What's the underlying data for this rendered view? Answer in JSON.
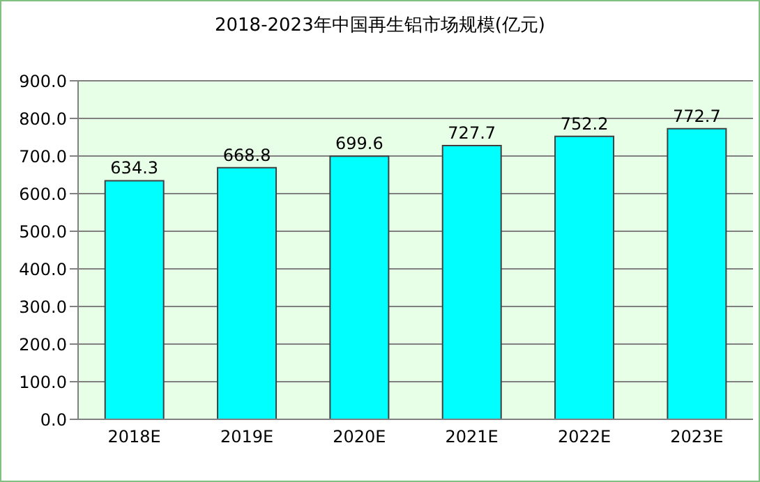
{
  "chart_data": {
    "type": "bar",
    "title": "2018-2023年中国再生铝市场规模(亿元)",
    "categories": [
      "2018E",
      "2019E",
      "2020E",
      "2021E",
      "2022E",
      "2023E"
    ],
    "values": [
      634.3,
      668.8,
      699.6,
      727.7,
      752.2,
      772.7
    ],
    "color": "#00ffff",
    "ylim": [
      0,
      900
    ],
    "yticks": [
      {
        "value": 0,
        "label": "0.0"
      },
      {
        "value": 100,
        "label": "100.0"
      },
      {
        "value": 200,
        "label": "200.0"
      },
      {
        "value": 300,
        "label": "300.0"
      },
      {
        "value": 400,
        "label": "400.0"
      },
      {
        "value": 500,
        "label": "500.0"
      },
      {
        "value": 600,
        "label": "600.0"
      },
      {
        "value": 700,
        "label": "700.0"
      },
      {
        "value": 800,
        "label": "800.0"
      },
      {
        "value": 900,
        "label": "900.0"
      }
    ],
    "grid": "y",
    "data_labels": true,
    "legend": false
  }
}
